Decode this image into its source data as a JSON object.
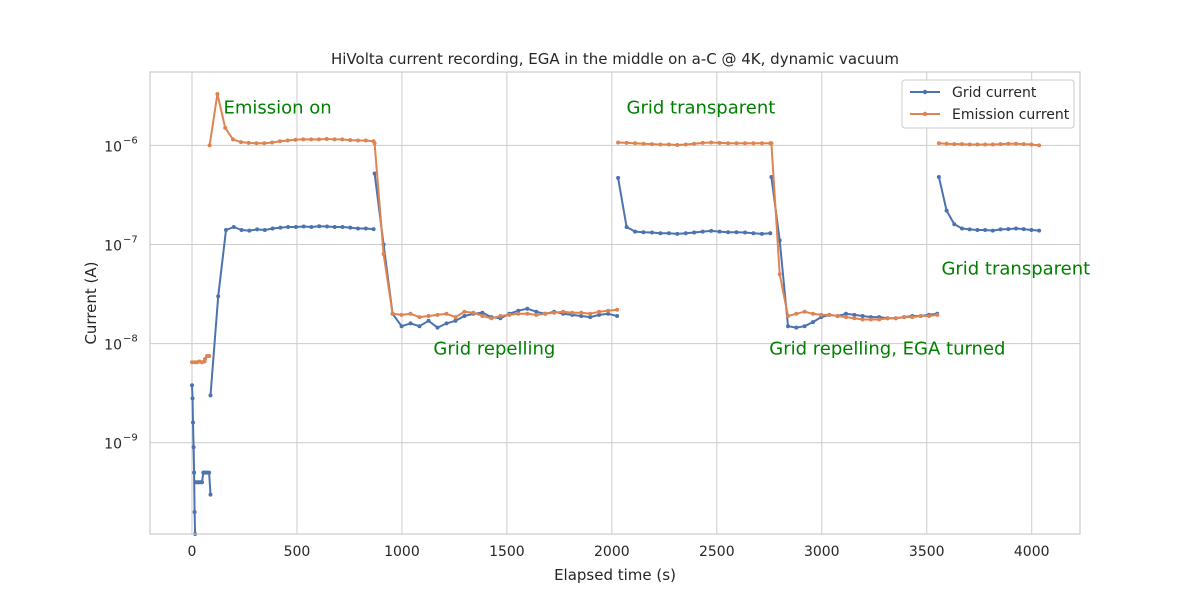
{
  "chart_data": {
    "type": "line",
    "title": "HiVolta current recording, EGA in the middle on a-C @ 4K, dynamic vacuum",
    "xlabel": "Elapsed time (s)",
    "ylabel": "Current (A)",
    "xlim": [
      -200,
      4230
    ],
    "ylim": [
      1.2e-10,
      5.5e-06
    ],
    "yscale": "log",
    "grid": true,
    "legend_position": "top-right",
    "x_ticks": [
      0,
      500,
      1000,
      1500,
      2000,
      2500,
      3000,
      3500,
      4000
    ],
    "x_tick_labels": [
      "0",
      "500",
      "1000",
      "1500",
      "2000",
      "2500",
      "3000",
      "3500",
      "4000"
    ],
    "y_ticks": [
      1e-09,
      1e-08,
      1e-07,
      1e-06
    ],
    "y_tick_labels": [
      {
        "base": "10",
        "exp": "−9"
      },
      {
        "base": "10",
        "exp": "−8"
      },
      {
        "base": "10",
        "exp": "−7"
      },
      {
        "base": "10",
        "exp": "−6"
      }
    ],
    "series": [
      {
        "name": "Grid current",
        "color": "#4c72b0",
        "segments": [
          {
            "x_start": 0,
            "x_end": 15,
            "values": [
              3.8e-09,
              2.8e-09,
              1.6e-09,
              9e-10,
              5e-10,
              2e-10,
              1.2e-10
            ]
          },
          {
            "x_start": 17,
            "x_end": 60,
            "values": [
              4e-10,
              4e-10,
              4e-10,
              4e-10,
              4e-10,
              4e-10,
              5e-10,
              5e-10
            ]
          },
          {
            "x_start": 62,
            "x_end": 88,
            "values": [
              5e-10,
              5e-10,
              5e-10,
              5e-10,
              3e-10
            ]
          },
          {
            "x_start": 88,
            "x_end": 865,
            "values": [
              3e-09,
              3e-08,
              1.4e-07,
              1.5e-07,
              1.4e-07,
              1.38e-07,
              1.42e-07,
              1.4e-07,
              1.45e-07,
              1.48e-07,
              1.5e-07,
              1.5e-07,
              1.52e-07,
              1.5e-07,
              1.53e-07,
              1.52e-07,
              1.5e-07,
              1.5e-07,
              1.48e-07,
              1.45e-07,
              1.45e-07,
              1.43e-07
            ]
          },
          {
            "x_start": 870,
            "x_end": 2025,
            "values": [
              5.2e-07,
              1e-07,
              2e-08,
              1.5e-08,
              1.6e-08,
              1.5e-08,
              1.7e-08,
              1.45e-08,
              1.6e-08,
              1.7e-08,
              1.9e-08,
              2e-08,
              2.05e-08,
              1.85e-08,
              1.8e-08,
              2e-08,
              2.15e-08,
              2.25e-08,
              2.1e-08,
              2e-08,
              2.1e-08,
              2e-08,
              1.95e-08,
              1.9e-08,
              1.85e-08,
              1.95e-08,
              2e-08,
              1.9e-08
            ]
          },
          {
            "x_start": 2030,
            "x_end": 2755,
            "values": [
              4.7e-07,
              1.5e-07,
              1.35e-07,
              1.33e-07,
              1.32e-07,
              1.3e-07,
              1.3e-07,
              1.28e-07,
              1.3e-07,
              1.32e-07,
              1.35e-07,
              1.37e-07,
              1.35e-07,
              1.33e-07,
              1.33e-07,
              1.32e-07,
              1.3e-07,
              1.28e-07,
              1.3e-07
            ]
          },
          {
            "x_start": 2760,
            "x_end": 3550,
            "values": [
              4.8e-07,
              1.1e-07,
              1.5e-08,
              1.45e-08,
              1.5e-08,
              1.65e-08,
              1.85e-08,
              1.95e-08,
              1.9e-08,
              2e-08,
              1.95e-08,
              1.9e-08,
              1.85e-08,
              1.85e-08,
              1.8e-08,
              1.8e-08,
              1.85e-08,
              1.9e-08,
              1.9e-08,
              1.95e-08,
              2e-08
            ]
          },
          {
            "x_start": 3558,
            "x_end": 4035,
            "values": [
              4.8e-07,
              2.2e-07,
              1.6e-07,
              1.45e-07,
              1.42e-07,
              1.4e-07,
              1.4e-07,
              1.38e-07,
              1.42e-07,
              1.43e-07,
              1.45e-07,
              1.43e-07,
              1.4e-07,
              1.38e-07
            ]
          }
        ]
      },
      {
        "name": "Emission current",
        "color": "#dd8452",
        "segments": [
          {
            "x_start": 0,
            "x_end": 60,
            "values": [
              6.5e-09,
              6.5e-09,
              6.5e-09,
              6.6e-09,
              6.5e-09,
              6.6e-09
            ]
          },
          {
            "x_start": 62,
            "x_end": 82,
            "values": [
              7e-09,
              7.5e-09,
              7.5e-09
            ]
          },
          {
            "x_start": 84,
            "x_end": 865,
            "values": [
              1e-06,
              3.3e-06,
              1.5e-06,
              1.15e-06,
              1.08e-06,
              1.06e-06,
              1.05e-06,
              1.05e-06,
              1.07e-06,
              1.1e-06,
              1.12e-06,
              1.14e-06,
              1.15e-06,
              1.15e-06,
              1.15e-06,
              1.16e-06,
              1.15e-06,
              1.15e-06,
              1.13e-06,
              1.12e-06,
              1.12e-06,
              1.1e-06
            ]
          },
          {
            "x_start": 870,
            "x_end": 2025,
            "values": [
              1.05e-06,
              8e-08,
              2e-08,
              1.95e-08,
              2e-08,
              1.85e-08,
              1.9e-08,
              1.95e-08,
              2e-08,
              1.85e-08,
              2.1e-08,
              2.05e-08,
              1.9e-08,
              1.8e-08,
              1.9e-08,
              1.95e-08,
              2e-08,
              2e-08,
              1.95e-08,
              2e-08,
              2.05e-08,
              2.1e-08,
              2.05e-08,
              2.05e-08,
              2e-08,
              2.1e-08,
              2.15e-08,
              2.2e-08
            ]
          },
          {
            "x_start": 2030,
            "x_end": 2755,
            "values": [
              1.07e-06,
              1.06e-06,
              1.05e-06,
              1.04e-06,
              1.03e-06,
              1.02e-06,
              1.02e-06,
              1.01e-06,
              1.02e-06,
              1.04e-06,
              1.06e-06,
              1.07e-06,
              1.06e-06,
              1.05e-06,
              1.05e-06,
              1.05e-06,
              1.05e-06,
              1.05e-06,
              1.05e-06
            ]
          },
          {
            "x_start": 2760,
            "x_end": 3550,
            "values": [
              1.05e-06,
              5e-08,
              1.9e-08,
              2e-08,
              2.1e-08,
              2e-08,
              1.95e-08,
              1.95e-08,
              1.9e-08,
              1.85e-08,
              1.8e-08,
              1.75e-08,
              1.75e-08,
              1.75e-08,
              1.8e-08,
              1.8e-08,
              1.85e-08,
              1.85e-08,
              1.9e-08,
              1.9e-08,
              1.95e-08
            ]
          },
          {
            "x_start": 3558,
            "x_end": 4035,
            "values": [
              1.05e-06,
              1.04e-06,
              1.03e-06,
              1.03e-06,
              1.02e-06,
              1.02e-06,
              1.02e-06,
              1.02e-06,
              1.03e-06,
              1.04e-06,
              1.04e-06,
              1.03e-06,
              1.02e-06,
              1e-06
            ]
          }
        ]
      }
    ],
    "annotations": [
      {
        "text": "Emission on",
        "x": 150,
        "y": 2.1e-06,
        "color": "#008000"
      },
      {
        "text": "Grid transparent",
        "x": 2070,
        "y": 2.1e-06,
        "color": "#008000"
      },
      {
        "text": "Grid repelling",
        "x": 1150,
        "y": 7.8e-09,
        "color": "#008000"
      },
      {
        "text": "Grid repelling, EGA turned",
        "x": 2750,
        "y": 7.8e-09,
        "color": "#008000"
      },
      {
        "text": "Grid transparent",
        "x": 3570,
        "y": 5e-08,
        "color": "#008000"
      }
    ]
  }
}
